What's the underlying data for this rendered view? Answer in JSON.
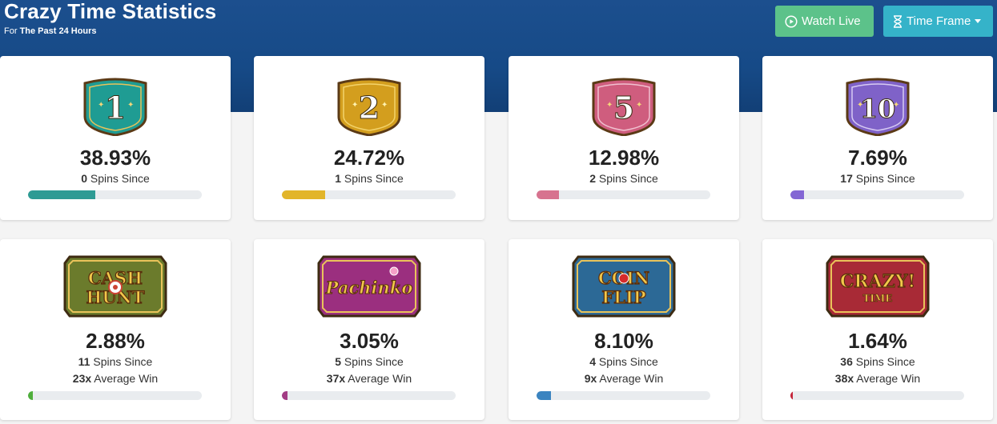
{
  "header": {
    "title": "Crazy Time Statistics",
    "subtitle_prefix": "For",
    "subtitle_range": "The Past 24 Hours",
    "watch_live_label": "Watch Live",
    "time_frame_label": "Time Frame"
  },
  "cards": [
    {
      "badge": "1",
      "percent": "38.93%",
      "spins": "0",
      "spins_label": "Spins Since",
      "progress": 0.389,
      "color": "#2e9b94"
    },
    {
      "badge": "2",
      "percent": "24.72%",
      "spins": "1",
      "spins_label": "Spins Since",
      "progress": 0.247,
      "color": "#e2b52a"
    },
    {
      "badge": "5",
      "percent": "12.98%",
      "spins": "2",
      "spins_label": "Spins Since",
      "progress": 0.13,
      "color": "#d7738f"
    },
    {
      "badge": "10",
      "percent": "7.69%",
      "spins": "17",
      "spins_label": "Spins Since",
      "progress": 0.077,
      "color": "#8366d4"
    },
    {
      "badge": "CASH HUNT",
      "percent": "2.88%",
      "spins": "11",
      "spins_label": "Spins Since",
      "avg": "23x",
      "avg_label": "Average Win",
      "progress": 0.029,
      "color": "#4fae3c"
    },
    {
      "badge": "Pachinko",
      "percent": "3.05%",
      "spins": "5",
      "spins_label": "Spins Since",
      "avg": "37x",
      "avg_label": "Average Win",
      "progress": 0.031,
      "color": "#a23c84"
    },
    {
      "badge": "COIN FLIP",
      "percent": "8.10%",
      "spins": "4",
      "spins_label": "Spins Since",
      "avg": "9x",
      "avg_label": "Average Win",
      "progress": 0.081,
      "color": "#3b84c0"
    },
    {
      "badge": "CRAZY TIME",
      "percent": "1.64%",
      "spins": "36",
      "spins_label": "Spins Since",
      "avg": "38x",
      "avg_label": "Average Win",
      "progress": 0.016,
      "color": "#c4253a"
    }
  ]
}
